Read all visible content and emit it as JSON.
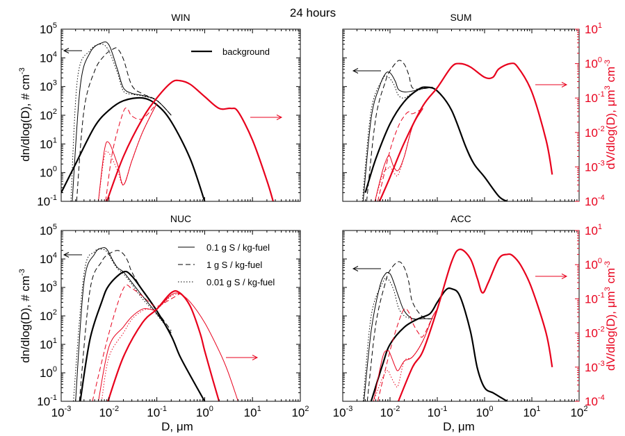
{
  "figure": {
    "title": "24 hours",
    "xlabel": "D, μm",
    "ylabel_left": "dn/dlog(D), # cm",
    "ylabel_left_sup": "-3",
    "ylabel_right": "dV/dlog(D), μm",
    "ylabel_right_sup1": "3",
    "ylabel_right_mid": " cm",
    "ylabel_right_sup2": "-3",
    "colors": {
      "number": "#000000",
      "volume": "#e8001c"
    }
  },
  "chart_data": [
    {
      "type": "line",
      "panel": "WIN",
      "title": "WIN",
      "xlim": [
        0.001,
        100
      ],
      "ylim_left": [
        0.1,
        100000
      ],
      "ylim_right": [
        0.0001,
        10
      ],
      "xscale": "log",
      "yscale": "log",
      "legend": [
        {
          "label": "background",
          "style": "thick-solid"
        }
      ],
      "arrows": [
        {
          "axis": "left",
          "direction": "left"
        },
        {
          "axis": "right",
          "direction": "right"
        }
      ],
      "series": [
        {
          "axis": "left",
          "style": "thick",
          "x": [
            0.001,
            0.002,
            0.005,
            0.01,
            0.02,
            0.05,
            0.1,
            0.2,
            0.5,
            1.0
          ],
          "y": [
            0.2,
            2,
            40,
            150,
            320,
            400,
            230,
            60,
            3,
            0.1
          ]
        },
        {
          "axis": "left",
          "style": "solid",
          "x": [
            0.0017,
            0.0025,
            0.004,
            0.007,
            0.01,
            0.015,
            0.02,
            0.03,
            0.05,
            0.1,
            0.2
          ],
          "y": [
            0.1,
            1000,
            15000,
            33000,
            28000,
            4000,
            900,
            580,
            490,
            330,
            100
          ]
        },
        {
          "axis": "left",
          "style": "dashed",
          "x": [
            0.0021,
            0.003,
            0.005,
            0.008,
            0.012,
            0.015,
            0.02,
            0.03,
            0.05,
            0.1,
            0.2
          ],
          "y": [
            0.1,
            150,
            3500,
            12000,
            20000,
            21000,
            9000,
            1100,
            560,
            330,
            100
          ]
        },
        {
          "axis": "left",
          "style": "dotted",
          "x": [
            0.0016,
            0.0022,
            0.004,
            0.007,
            0.01,
            0.015,
            0.02,
            0.03,
            0.05,
            0.1,
            0.2
          ],
          "y": [
            0.1,
            2000,
            18000,
            30000,
            17000,
            3000,
            700,
            540,
            470,
            320,
            100
          ]
        },
        {
          "axis": "right",
          "style": "thick",
          "x": [
            0.009,
            0.02,
            0.05,
            0.1,
            0.2,
            0.3,
            0.5,
            1.0,
            2.0,
            3.5,
            5.0,
            10.0,
            20.0,
            27.0
          ],
          "y": [
            0.0001,
            0.002,
            0.025,
            0.1,
            0.28,
            0.32,
            0.25,
            0.11,
            0.05,
            0.05,
            0.04,
            0.006,
            0.0004,
            0.0001
          ]
        },
        {
          "axis": "right",
          "style": "solid",
          "x": [
            0.006,
            0.008,
            0.01,
            0.015,
            0.02,
            0.03,
            0.05,
            0.1
          ],
          "y": [
            0.0001,
            0.003,
            0.005,
            0.0012,
            0.0003,
            0.0015,
            0.01,
            0.07
          ]
        },
        {
          "axis": "right",
          "style": "dashed",
          "x": [
            0.0085,
            0.012,
            0.02,
            0.025,
            0.03,
            0.05,
            0.1
          ],
          "y": [
            0.0001,
            0.003,
            0.04,
            0.045,
            0.03,
            0.025,
            0.07
          ]
        },
        {
          "axis": "right",
          "style": "dotted",
          "x": [
            0.006,
            0.008,
            0.01,
            0.015,
            0.02,
            0.03,
            0.05,
            0.1
          ],
          "y": [
            0.0001,
            0.002,
            0.0025,
            0.0008,
            0.0003,
            0.0015,
            0.01,
            0.07
          ]
        }
      ]
    },
    {
      "type": "line",
      "panel": "SUM",
      "title": "SUM",
      "xlim": [
        0.001,
        100
      ],
      "ylim_left": [
        0.1,
        100000
      ],
      "ylim_right": [
        0.0001,
        10
      ],
      "xscale": "log",
      "yscale": "log",
      "arrows": [
        {
          "axis": "left",
          "direction": "left"
        },
        {
          "axis": "right",
          "direction": "right"
        }
      ],
      "series": [
        {
          "axis": "left",
          "style": "thick",
          "x": [
            0.003,
            0.005,
            0.01,
            0.02,
            0.04,
            0.06,
            0.1,
            0.2,
            0.4,
            0.6,
            1.0,
            2.0,
            3.0
          ],
          "y": [
            0.2,
            3,
            50,
            300,
            800,
            950,
            700,
            150,
            8,
            2,
            0.7,
            0.15,
            0.1
          ]
        },
        {
          "axis": "left",
          "style": "solid",
          "x": [
            0.0027,
            0.004,
            0.006,
            0.008,
            0.01,
            0.013,
            0.015,
            0.02,
            0.03,
            0.05,
            0.08
          ],
          "y": [
            0.1,
            80,
            1000,
            2800,
            3000,
            1500,
            800,
            650,
            700,
            850,
            950
          ]
        },
        {
          "axis": "left",
          "style": "dashed",
          "x": [
            0.0032,
            0.005,
            0.008,
            0.01,
            0.015,
            0.02,
            0.025,
            0.03,
            0.05,
            0.08
          ],
          "y": [
            0.1,
            80,
            1500,
            3500,
            8000,
            6000,
            2500,
            900,
            850,
            950
          ]
        },
        {
          "axis": "left",
          "style": "dotted",
          "x": [
            0.0026,
            0.004,
            0.007,
            0.009,
            0.012,
            0.015,
            0.02,
            0.03,
            0.05,
            0.08
          ],
          "y": [
            0.1,
            150,
            1800,
            2200,
            1200,
            500,
            400,
            600,
            850,
            950
          ]
        },
        {
          "axis": "right",
          "style": "thick",
          "x": [
            0.006,
            0.01,
            0.02,
            0.05,
            0.1,
            0.2,
            0.3,
            0.5,
            1.0,
            1.5,
            2.0,
            3.5,
            5.0,
            10.0,
            20.0,
            27.0
          ],
          "y": [
            0.0001,
            0.0005,
            0.005,
            0.06,
            0.2,
            0.8,
            1.0,
            0.8,
            0.4,
            0.4,
            0.7,
            1.0,
            0.8,
            0.15,
            0.006,
            0.0006
          ]
        },
        {
          "axis": "right",
          "style": "solid",
          "x": [
            0.0048,
            0.007,
            0.009,
            0.01,
            0.012,
            0.015,
            0.02,
            0.03,
            0.05
          ],
          "y": [
            0.0001,
            0.0008,
            0.002,
            0.002,
            0.001,
            0.0008,
            0.002,
            0.015,
            0.05
          ]
        },
        {
          "axis": "right",
          "style": "dashed",
          "x": [
            0.0055,
            0.01,
            0.015,
            0.02,
            0.025,
            0.03,
            0.05
          ],
          "y": [
            0.0001,
            0.003,
            0.015,
            0.03,
            0.04,
            0.035,
            0.05
          ]
        },
        {
          "axis": "right",
          "style": "dotted",
          "x": [
            0.0048,
            0.007,
            0.009,
            0.01,
            0.013,
            0.015,
            0.02,
            0.03,
            0.05
          ],
          "y": [
            0.0001,
            0.0006,
            0.0009,
            0.001,
            0.0006,
            0.0006,
            0.002,
            0.015,
            0.05
          ]
        }
      ]
    },
    {
      "type": "line",
      "panel": "NUC",
      "title": "NUC",
      "xlim": [
        0.001,
        100
      ],
      "ylim_left": [
        0.1,
        100000
      ],
      "ylim_right": [
        0.0001,
        10
      ],
      "xscale": "log",
      "yscale": "log",
      "legend": [
        {
          "label": "0.1 g S / kg-fuel",
          "style": "solid"
        },
        {
          "label": "1 g S / kg-fuel",
          "style": "dashed"
        },
        {
          "label": "0.01 g S / kg-fuel",
          "style": "dotted"
        }
      ],
      "arrows": [
        {
          "axis": "left",
          "direction": "left"
        },
        {
          "axis": "right",
          "direction": "right"
        }
      ],
      "series": [
        {
          "axis": "left",
          "style": "thick",
          "x": [
            0.0025,
            0.004,
            0.007,
            0.01,
            0.02,
            0.03,
            0.05,
            0.1,
            0.2,
            0.3,
            0.5,
            1.0
          ],
          "y": [
            0.1,
            15,
            300,
            1200,
            3500,
            2500,
            800,
            150,
            20,
            4,
            0.8,
            0.1
          ]
        },
        {
          "axis": "left",
          "style": "solid",
          "x": [
            0.002,
            0.003,
            0.005,
            0.007,
            0.009,
            0.012,
            0.015,
            0.02,
            0.03,
            0.05,
            0.1,
            0.2
          ],
          "y": [
            0.1,
            1500,
            15000,
            24000,
            22000,
            9000,
            5000,
            3500,
            1500,
            500,
            120,
            25
          ]
        },
        {
          "axis": "left",
          "style": "dashed",
          "x": [
            0.0024,
            0.004,
            0.007,
            0.01,
            0.015,
            0.02,
            0.025,
            0.03,
            0.05,
            0.1,
            0.2
          ],
          "y": [
            0.1,
            800,
            8000,
            15000,
            20000,
            15000,
            8000,
            3500,
            800,
            150,
            30
          ]
        },
        {
          "axis": "left",
          "style": "dotted",
          "x": [
            0.0018,
            0.003,
            0.005,
            0.007,
            0.009,
            0.012,
            0.015,
            0.02,
            0.03,
            0.05,
            0.1,
            0.2
          ],
          "y": [
            0.1,
            3000,
            18000,
            22000,
            18000,
            8000,
            4500,
            3000,
            1300,
            400,
            110,
            25
          ]
        },
        {
          "axis": "right",
          "style": "thick",
          "x": [
            0.0095,
            0.02,
            0.05,
            0.1,
            0.2,
            0.3,
            0.5,
            0.8,
            1.0,
            1.5,
            2.0
          ],
          "y": [
            0.0001,
            0.002,
            0.02,
            0.05,
            0.15,
            0.15,
            0.06,
            0.01,
            0.003,
            0.0004,
            0.0001
          ]
        },
        {
          "axis": "right",
          "style": "solid",
          "x": [
            0.006,
            0.01,
            0.02,
            0.03,
            0.05,
            0.07,
            0.1,
            0.2,
            0.3,
            0.5,
            1.0,
            2.0,
            3.0,
            5.0
          ],
          "y": [
            0.0001,
            0.004,
            0.015,
            0.03,
            0.05,
            0.05,
            0.05,
            0.13,
            0.14,
            0.08,
            0.02,
            0.003,
            0.0008,
            0.0001
          ]
        },
        {
          "axis": "right",
          "style": "dashed",
          "x": [
            0.0045,
            0.01,
            0.02,
            0.03,
            0.05,
            0.07,
            0.1,
            0.2,
            0.3
          ],
          "y": [
            0.0001,
            0.01,
            0.2,
            0.2,
            0.12,
            0.08,
            0.06,
            0.1,
            0.14
          ]
        },
        {
          "axis": "right",
          "style": "dotted",
          "x": [
            0.007,
            0.01,
            0.02,
            0.03,
            0.05,
            0.07,
            0.1,
            0.2,
            0.3
          ],
          "y": [
            0.0001,
            0.002,
            0.01,
            0.025,
            0.045,
            0.05,
            0.05,
            0.12,
            0.14
          ]
        }
      ]
    },
    {
      "type": "line",
      "panel": "ACC",
      "title": "ACC",
      "xlim": [
        0.001,
        100
      ],
      "ylim_left": [
        0.1,
        100000
      ],
      "ylim_right": [
        0.0001,
        10
      ],
      "xscale": "log",
      "yscale": "log",
      "arrows": [
        {
          "axis": "left",
          "direction": "left"
        },
        {
          "axis": "right",
          "direction": "right"
        }
      ],
      "series": [
        {
          "axis": "left",
          "style": "thick",
          "x": [
            0.004,
            0.007,
            0.01,
            0.02,
            0.04,
            0.07,
            0.1,
            0.15,
            0.2,
            0.3,
            0.5,
            0.7,
            1.0,
            1.5,
            2.0,
            3.0
          ],
          "y": [
            0.1,
            2,
            10,
            40,
            80,
            120,
            300,
            800,
            900,
            500,
            30,
            1.5,
            0.3,
            0.2,
            0.15,
            0.1
          ]
        },
        {
          "axis": "left",
          "style": "solid",
          "x": [
            0.0028,
            0.004,
            0.006,
            0.008,
            0.01,
            0.012,
            0.015,
            0.02,
            0.03,
            0.05,
            0.08
          ],
          "y": [
            0.1,
            30,
            1000,
            3000,
            3000,
            1500,
            500,
            150,
            80,
            80,
            80
          ]
        },
        {
          "axis": "left",
          "style": "dashed",
          "x": [
            0.0033,
            0.005,
            0.008,
            0.01,
            0.015,
            0.02,
            0.025,
            0.03,
            0.05,
            0.08
          ],
          "y": [
            0.1,
            50,
            1500,
            4000,
            8000,
            5000,
            1500,
            300,
            90,
            80
          ]
        },
        {
          "axis": "left",
          "style": "dotted",
          "x": [
            0.0027,
            0.004,
            0.007,
            0.009,
            0.012,
            0.015,
            0.02,
            0.03,
            0.05,
            0.08
          ],
          "y": [
            0.1,
            100,
            1500,
            2000,
            800,
            200,
            100,
            80,
            80,
            80
          ]
        },
        {
          "axis": "right",
          "style": "thick",
          "x": [
            0.015,
            0.03,
            0.05,
            0.1,
            0.2,
            0.3,
            0.5,
            0.7,
            0.9,
            1.2,
            2.0,
            3.0,
            4.0,
            6.0,
            10.0,
            20.0,
            27.0
          ],
          "y": [
            0.0001,
            0.001,
            0.003,
            0.05,
            1.2,
            2.8,
            1.5,
            0.4,
            0.15,
            0.3,
            1.5,
            2.0,
            1.8,
            0.9,
            0.2,
            0.01,
            0.001
          ]
        },
        {
          "axis": "right",
          "style": "solid",
          "x": [
            0.0045,
            0.007,
            0.009,
            0.01,
            0.013,
            0.015,
            0.02,
            0.03,
            0.05,
            0.08,
            0.1
          ],
          "y": [
            0.0001,
            0.002,
            0.003,
            0.0025,
            0.001,
            0.0008,
            0.0015,
            0.002,
            0.006,
            0.03,
            0.05
          ]
        },
        {
          "axis": "right",
          "style": "dashed",
          "x": [
            0.0055,
            0.01,
            0.015,
            0.02,
            0.025,
            0.03,
            0.04,
            0.05,
            0.08,
            0.1
          ],
          "y": [
            0.0001,
            0.003,
            0.02,
            0.05,
            0.04,
            0.02,
            0.01,
            0.008,
            0.03,
            0.05
          ]
        },
        {
          "axis": "right",
          "style": "dotted",
          "x": [
            0.0045,
            0.007,
            0.009,
            0.01,
            0.013,
            0.015,
            0.02,
            0.03,
            0.05,
            0.08,
            0.1
          ],
          "y": [
            0.0001,
            0.0005,
            0.0008,
            0.0006,
            0.0003,
            0.0003,
            0.0015,
            0.002,
            0.006,
            0.03,
            0.05
          ]
        }
      ]
    }
  ]
}
